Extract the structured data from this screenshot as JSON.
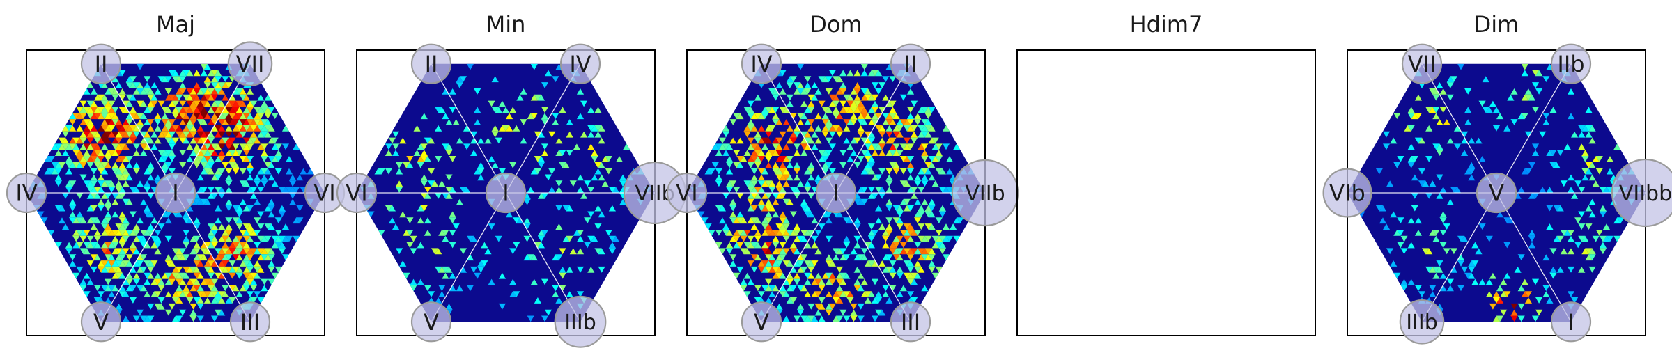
{
  "chart_data": [
    {
      "type": "heatmap",
      "title": "Maj",
      "center_label": "I",
      "vertex_labels": [
        "II",
        "VII",
        "VI",
        "III",
        "V",
        "IV"
      ],
      "vertex_weights": [
        0.22,
        0.3,
        0.18,
        0.2,
        0.2,
        0.22
      ],
      "center_weight": 0.2,
      "hotspots": [
        {
          "u": -0.5,
          "v": 0.38,
          "strength": 1.0,
          "spread": 0.22
        },
        {
          "u": 0.12,
          "v": 0.55,
          "strength": 0.85,
          "spread": 0.22
        },
        {
          "u": 0.42,
          "v": 0.38,
          "strength": 0.8,
          "spread": 0.2
        },
        {
          "u": -0.45,
          "v": -0.35,
          "strength": 0.75,
          "spread": 0.2
        },
        {
          "u": 0.42,
          "v": -0.42,
          "strength": 0.75,
          "spread": 0.2
        },
        {
          "u": 0.05,
          "v": -0.62,
          "strength": 0.65,
          "spread": 0.18
        }
      ],
      "density": 0.75,
      "empty": false
    },
    {
      "type": "heatmap",
      "title": "Min",
      "center_label": "I",
      "vertex_labels": [
        "II",
        "IV",
        "VIIb",
        "IIIb",
        "V",
        "VI"
      ],
      "vertex_weights": [
        0.18,
        0.2,
        0.5,
        0.38,
        0.18,
        0.12
      ],
      "center_weight": 0.22,
      "hotspots": [
        {
          "u": -0.6,
          "v": 0.22,
          "strength": 0.55,
          "spread": 0.22
        },
        {
          "u": 0.05,
          "v": 0.5,
          "strength": 0.45,
          "spread": 0.25
        },
        {
          "u": 0.55,
          "v": 0.3,
          "strength": 0.5,
          "spread": 0.25
        },
        {
          "u": -0.55,
          "v": -0.35,
          "strength": 0.45,
          "spread": 0.25
        },
        {
          "u": 0.35,
          "v": -0.45,
          "strength": 0.45,
          "spread": 0.25
        }
      ],
      "density": 0.3,
      "empty": false
    },
    {
      "type": "heatmap",
      "title": "Dom",
      "center_label": "I",
      "vertex_labels": [
        "IV",
        "II",
        "VIIb",
        "III",
        "V",
        "VI"
      ],
      "vertex_weights": [
        0.2,
        0.2,
        0.55,
        0.2,
        0.2,
        0.12
      ],
      "center_weight": 0.18,
      "hotspots": [
        {
          "u": -0.45,
          "v": 0.3,
          "strength": 0.9,
          "spread": 0.22
        },
        {
          "u": 0.05,
          "v": 0.6,
          "strength": 0.7,
          "spread": 0.22
        },
        {
          "u": 0.48,
          "v": 0.32,
          "strength": 0.75,
          "spread": 0.2
        },
        {
          "u": -0.48,
          "v": -0.35,
          "strength": 0.9,
          "spread": 0.22
        },
        {
          "u": 0.5,
          "v": -0.35,
          "strength": 0.75,
          "spread": 0.2
        },
        {
          "u": 0.0,
          "v": -0.68,
          "strength": 0.75,
          "spread": 0.18
        }
      ],
      "density": 0.6,
      "empty": false
    },
    {
      "type": "heatmap",
      "title": "Hdim7",
      "center_label": "",
      "vertex_labels": [],
      "vertex_weights": [],
      "center_weight": 0,
      "hotspots": [],
      "density": 0,
      "empty": true
    },
    {
      "type": "heatmap",
      "title": "Dim",
      "center_label": "V",
      "vertex_labels": [
        "VII",
        "IIb",
        "VIIbb",
        "I",
        "IIIb",
        "VIb"
      ],
      "vertex_weights": [
        0.25,
        0.2,
        0.7,
        0.2,
        0.3,
        0.35
      ],
      "center_weight": 0.2,
      "hotspots": [
        {
          "u": -0.45,
          "v": 0.5,
          "strength": 0.6,
          "spread": 0.2
        },
        {
          "u": 0.2,
          "v": 0.72,
          "strength": 0.45,
          "spread": 0.2
        },
        {
          "u": 0.65,
          "v": 0.25,
          "strength": 0.5,
          "spread": 0.18
        },
        {
          "u": 0.1,
          "v": -0.75,
          "strength": 1.0,
          "spread": 0.14
        },
        {
          "u": -0.45,
          "v": -0.35,
          "strength": 0.45,
          "spread": 0.2
        },
        {
          "u": 0.6,
          "v": -0.35,
          "strength": 0.45,
          "spread": 0.2
        }
      ],
      "density": 0.35,
      "empty": false
    }
  ]
}
